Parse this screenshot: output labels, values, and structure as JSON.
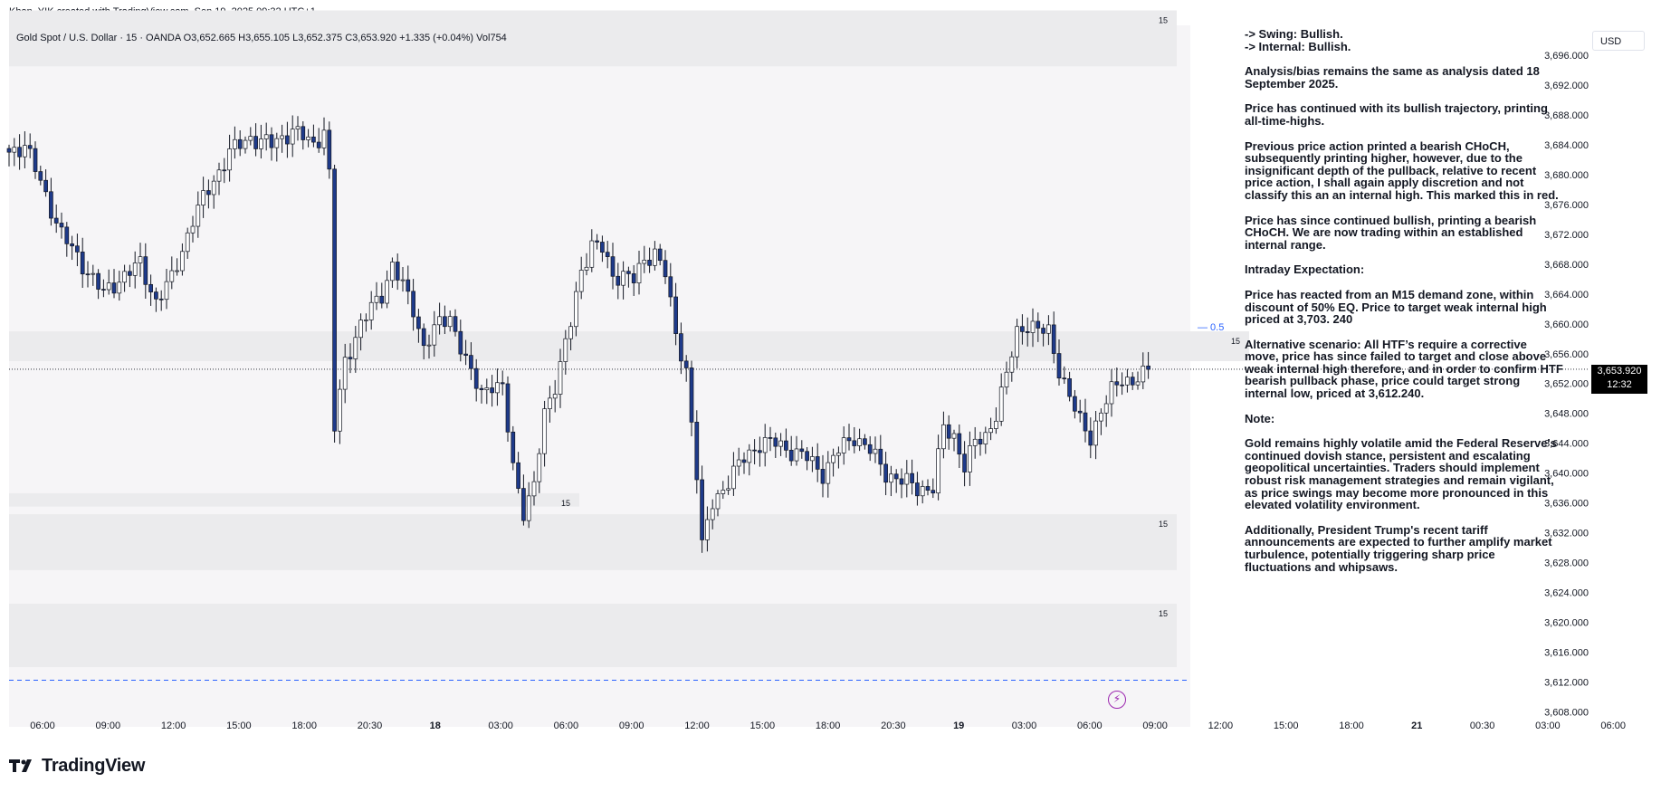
{
  "header": {
    "credit": "Khan_YIK created with TradingView.com, Sep 19, 2025 09:32 UTC+1",
    "ohlc_line": "Gold Spot / U.S. Dollar · 15 · OANDA  O3,652.665  H3,655.105  L3,652.375  C3,653.920  +1.335 (+0.04%)  Vol754"
  },
  "currency": "USD",
  "last_price": {
    "value": "3,653.920",
    "countdown": "12:32"
  },
  "equilibrium_label": "— 0.5",
  "zone_label": "15",
  "brand": "TradingView",
  "colors": {
    "up": "#ffffff",
    "down": "#1e3a8a",
    "wick": "#131722",
    "zone": "#ebebed",
    "accent": "#2962ff"
  },
  "chart_data": {
    "type": "candlestick",
    "symbol": "XAUUSD",
    "timeframe": "15",
    "y_ticks": [
      "3,696.000",
      "3,692.000",
      "3,688.000",
      "3,684.000",
      "3,680.000",
      "3,676.000",
      "3,672.000",
      "3,668.000",
      "3,664.000",
      "3,660.000",
      "3,656.000",
      "3,652.000",
      "3,648.000",
      "3,644.000",
      "3,640.000",
      "3,636.000",
      "3,632.000",
      "3,628.000",
      "3,624.000",
      "3,620.000",
      "3,616.000",
      "3,612.000",
      "3,608.000"
    ],
    "y_range": [
      3606,
      3700
    ],
    "x_ticks": [
      "06:00",
      "09:00",
      "12:00",
      "15:00",
      "18:00",
      "20:30",
      "18",
      "03:00",
      "06:00",
      "09:00",
      "12:00",
      "15:00",
      "18:00",
      "20:30",
      "19",
      "03:00",
      "06:00",
      "09:00",
      "12:00",
      "15:00",
      "18:00",
      "21",
      "00:30",
      "03:00",
      "06:00"
    ],
    "bold_x_ticks": [
      "18",
      "19",
      "21"
    ],
    "anchors": [
      [
        0,
        3683
      ],
      [
        3,
        3684
      ],
      [
        6,
        3679
      ],
      [
        10,
        3672
      ],
      [
        14,
        3668
      ],
      [
        18,
        3664
      ],
      [
        21,
        3666
      ],
      [
        25,
        3668
      ],
      [
        28,
        3663
      ],
      [
        31,
        3666
      ],
      [
        35,
        3674
      ],
      [
        38,
        3678
      ],
      [
        42,
        3683
      ],
      [
        46,
        3685
      ],
      [
        50,
        3684
      ],
      [
        54,
        3686
      ],
      [
        58,
        3684
      ],
      [
        60,
        3686
      ],
      [
        61,
        3680
      ],
      [
        62,
        3646
      ],
      [
        64,
        3655
      ],
      [
        67,
        3660
      ],
      [
        71,
        3664
      ],
      [
        73,
        3668
      ],
      [
        75,
        3665
      ],
      [
        77,
        3662
      ],
      [
        79,
        3657
      ],
      [
        80,
        3658
      ],
      [
        82,
        3660
      ],
      [
        84,
        3661
      ],
      [
        86,
        3657
      ],
      [
        88,
        3653
      ],
      [
        90,
        3651
      ],
      [
        92,
        3652
      ],
      [
        94,
        3651
      ],
      [
        96,
        3641
      ],
      [
        98,
        3635
      ],
      [
        100,
        3638
      ],
      [
        102,
        3648
      ],
      [
        104,
        3652
      ],
      [
        107,
        3660
      ],
      [
        109,
        3667
      ],
      [
        111,
        3671
      ],
      [
        113,
        3670
      ],
      [
        115,
        3666
      ],
      [
        117,
        3667
      ],
      [
        119,
        3666
      ],
      [
        121,
        3668
      ],
      [
        123,
        3670
      ],
      [
        125,
        3667
      ],
      [
        127,
        3658
      ],
      [
        129,
        3654
      ],
      [
        131,
        3640
      ],
      [
        132,
        3630
      ],
      [
        134,
        3636
      ],
      [
        137,
        3639
      ],
      [
        140,
        3642
      ],
      [
        143,
        3644
      ],
      [
        146,
        3644
      ],
      [
        149,
        3643
      ],
      [
        152,
        3642
      ],
      [
        155,
        3640
      ],
      [
        158,
        3643
      ],
      [
        161,
        3645
      ],
      [
        164,
        3643
      ],
      [
        167,
        3640
      ],
      [
        170,
        3639
      ],
      [
        173,
        3638
      ],
      [
        176,
        3638
      ],
      [
        178,
        3646
      ],
      [
        180,
        3645
      ],
      [
        182,
        3641
      ],
      [
        184,
        3644
      ],
      [
        186,
        3645
      ],
      [
        188,
        3648
      ],
      [
        190,
        3653
      ],
      [
        192,
        3659
      ],
      [
        194,
        3660
      ],
      [
        196,
        3659
      ],
      [
        198,
        3659
      ],
      [
        200,
        3654
      ],
      [
        202,
        3650
      ],
      [
        204,
        3647
      ],
      [
        206,
        3645
      ],
      [
        208,
        3648
      ],
      [
        210,
        3651
      ],
      [
        212,
        3653
      ],
      [
        214,
        3652
      ],
      [
        216,
        3653
      ],
      [
        217,
        3653.9
      ]
    ],
    "reference_lines": {
      "last_price": 3653.92,
      "target_low": 3612.24
    },
    "zones": [
      [
        3694.5,
        3702
      ],
      [
        3655,
        3659
      ],
      [
        3635.5,
        3637.3
      ],
      [
        3627,
        3634.5
      ],
      [
        3614,
        3622.5
      ]
    ]
  },
  "analysis": {
    "paragraphs": [
      "-> Swing: Bullish.\n-> Internal: Bullish.",
      "Analysis/bias remains the same as analysis dated 18 September 2025.",
      "Price has continued with its bullish trajectory, printing all-time-highs.",
      "Previous price action printed a bearish CHoCH, subsequently printing higher, however, due to the insignificant depth of the pullback, relative to recent price action, I shall again apply discretion and not classify this an an internal high.  This marked this in red.",
      "Price has since continued bullish, printing a bearish CHoCH.  We are now trading within an established internal range.",
      "Intraday Expectation:",
      "Price has reacted from an M15 demand zone, within discount of 50% EQ.  Price to target weak internal high priced at 3,703. 240",
      "Alternative scenario: All HTF’s require a corrective move, price has since failed to target and close above weak internal high therefore, and in order to confirm HTF bearish pullback phase, price could target strong internal low, priced at 3,612.240.",
      "Note:",
      "Gold remains highly volatile amid the Federal Reserve's continued dovish stance, persistent and escalating geopolitical uncertainties. Traders should implement robust risk management strategies and remain vigilant, as price swings may become more pronounced in this elevated volatility environment.",
      "Additionally, President Trump's recent tariff announcements are expected to further amplify market turbulence, potentially triggering sharp price fluctuations and whipsaws."
    ]
  }
}
